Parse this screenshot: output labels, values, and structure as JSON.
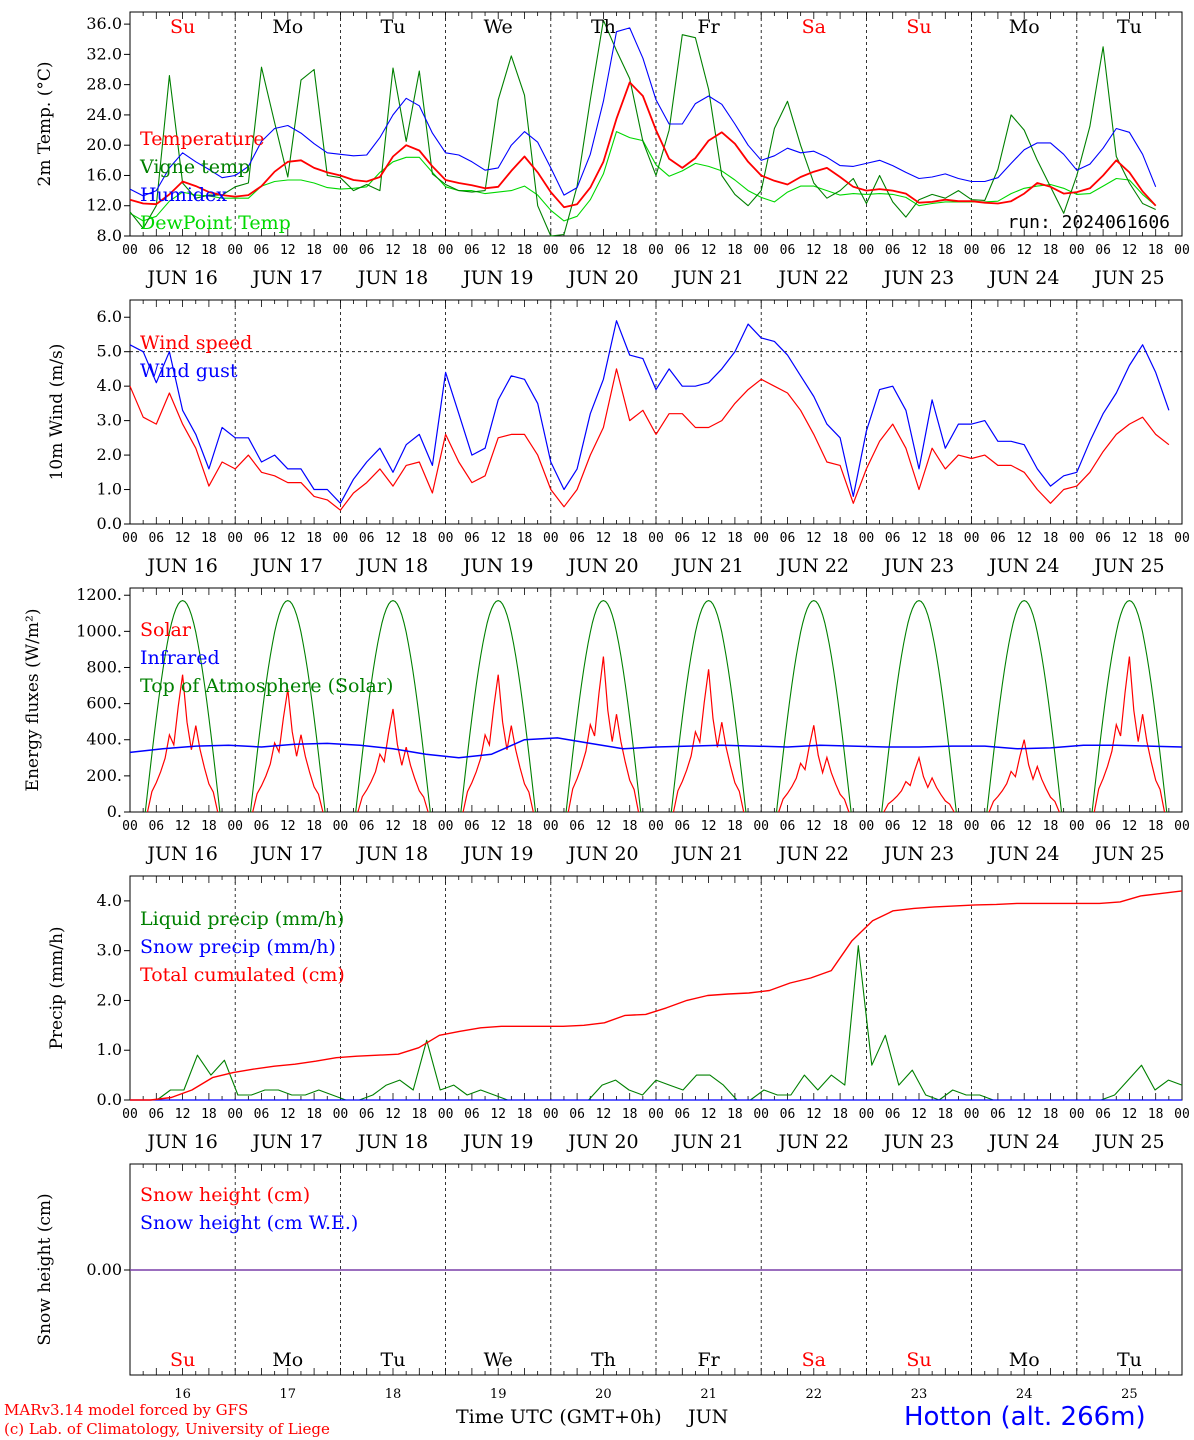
{
  "footer": {
    "model_line": "MARv3.14 model forced by GFS",
    "copyright_line": "(c) Lab. of Climatology, University of Liege",
    "xlabel": "Time UTC (GMT+0h)",
    "month": "JUN",
    "station": "Hotton (alt. 266m)"
  },
  "colors": {
    "red": "#ff0000",
    "blue": "#0000ff",
    "green": "#008000",
    "light_green": "#00d800",
    "purple": "#7a3fa8"
  },
  "days": {
    "weekday_labels": [
      "Su",
      "Mo",
      "Tu",
      "We",
      "Th",
      "Fr",
      "Sa",
      "Su",
      "Mo",
      "Tu"
    ],
    "weekday_colors": [
      "#ff0000",
      "#000000",
      "#000000",
      "#000000",
      "#000000",
      "#000000",
      "#ff0000",
      "#ff0000",
      "#000000",
      "#000000"
    ],
    "date_labels": [
      "JUN 16",
      "JUN 17",
      "JUN 18",
      "JUN 19",
      "JUN 20",
      "JUN 21",
      "JUN 22",
      "JUN 23",
      "JUN 24",
      "JUN 25"
    ],
    "day_numbers": [
      "16",
      "17",
      "18",
      "19",
      "20",
      "21",
      "22",
      "23",
      "24",
      "25"
    ],
    "hour_labels": [
      "00",
      "06",
      "12",
      "18"
    ],
    "final_hour_label": "00"
  },
  "chart_data": [
    {
      "type": "line",
      "ylabel": "2m Temp. (°C)",
      "ylim": [
        8,
        37.6
      ],
      "yticks": [
        "8.0",
        "12.0",
        "16.0",
        "20.0",
        "24.0",
        "28.0",
        "32.0",
        "36.0"
      ],
      "annotation": "run: 2024061606",
      "x": "hours since JUN 16 00 UTC (3-hourly)",
      "series": [
        {
          "name": "Temperature",
          "color": "#ff0000",
          "values": [
            12.8,
            12.3,
            12.2,
            13.5,
            15.2,
            14.6,
            13.8,
            13.4,
            13.2,
            13.4,
            14.6,
            16.5,
            17.8,
            18.0,
            17.0,
            16.4,
            16.0,
            15.4,
            15.2,
            15.8,
            18.5,
            20.0,
            19.3,
            17.2,
            15.4,
            15.0,
            14.7,
            14.3,
            14.5,
            16.6,
            18.5,
            16.4,
            13.8,
            11.8,
            12.2,
            14.4,
            17.8,
            23.5,
            28.3,
            26.5,
            22.0,
            18.2,
            17.0,
            18.3,
            20.6,
            21.7,
            20.2,
            17.8,
            16.0,
            15.3,
            14.8,
            15.8,
            16.5,
            17.0,
            15.8,
            14.5,
            14.0,
            14.2,
            14.0,
            13.6,
            12.4,
            12.5,
            12.8,
            12.6,
            12.6,
            12.4,
            12.3,
            12.6,
            13.6,
            15.0,
            14.5,
            13.6,
            13.8,
            14.3,
            16.0,
            18.0,
            16.4,
            13.9,
            12.0
          ]
        },
        {
          "name": "Vigne temp",
          "color": "#008000",
          "values": [
            11.2,
            9.0,
            12.0,
            29.2,
            15.0,
            13.0,
            13.4,
            13.4,
            14.5,
            15.0,
            30.3,
            23.0,
            15.8,
            28.6,
            30.0,
            16.0,
            15.7,
            14.0,
            14.8,
            14.0,
            30.2,
            20.5,
            29.8,
            16.2,
            14.8,
            14.0,
            13.8,
            14.0,
            26.0,
            31.8,
            26.6,
            12.0,
            8.0,
            8.2,
            14.6,
            26.0,
            36.5,
            32.5,
            28.8,
            20.5,
            16.0,
            22.0,
            34.6,
            34.2,
            27.4,
            16.0,
            13.5,
            12.0,
            14.0,
            22.2,
            25.8,
            20.0,
            15.0,
            13.0,
            14.0,
            15.6,
            12.3,
            16.0,
            12.5,
            10.5,
            12.8,
            13.5,
            13.0,
            14.0,
            12.8,
            12.7,
            16.8,
            24.0,
            22.0,
            18.0,
            14.5,
            11.0,
            16.0,
            22.5,
            33.0,
            18.5,
            15.0,
            12.3,
            11.5
          ]
        },
        {
          "name": "Humidex",
          "color": "#0000ff",
          "values": [
            14.2,
            13.3,
            14.0,
            17.0,
            19.0,
            17.8,
            16.8,
            15.7,
            16.0,
            17.2,
            20.5,
            22.2,
            22.6,
            21.6,
            20.2,
            19.0,
            18.8,
            18.6,
            18.7,
            21.0,
            24.0,
            26.2,
            25.2,
            21.6,
            19.0,
            18.7,
            17.8,
            16.7,
            17.0,
            20.0,
            21.8,
            20.4,
            17.0,
            13.4,
            14.4,
            18.8,
            25.8,
            35.0,
            35.5,
            31.5,
            26.0,
            22.8,
            22.8,
            25.5,
            26.5,
            25.4,
            22.8,
            20.0,
            18.0,
            18.6,
            19.6,
            19.0,
            19.2,
            18.4,
            17.3,
            17.2,
            17.6,
            18.0,
            17.3,
            16.4,
            15.6,
            15.8,
            16.2,
            15.6,
            15.2,
            15.2,
            15.7,
            17.6,
            19.4,
            20.3,
            20.3,
            18.8,
            16.7,
            17.5,
            19.6,
            22.2,
            21.7,
            18.8,
            14.5
          ]
        },
        {
          "name": "DewPoint Temp",
          "color": "#00d800",
          "values": [
            11.0,
            10.0,
            10.6,
            12.6,
            13.8,
            13.4,
            13.3,
            13.0,
            13.0,
            13.0,
            14.6,
            15.2,
            15.4,
            15.4,
            15.0,
            14.4,
            14.2,
            14.3,
            14.5,
            16.4,
            17.8,
            18.4,
            18.4,
            16.4,
            14.5,
            14.0,
            14.0,
            13.6,
            13.8,
            14.0,
            14.6,
            13.4,
            11.4,
            10.0,
            10.6,
            12.8,
            16.2,
            21.8,
            21.0,
            20.6,
            17.4,
            15.9,
            16.6,
            17.6,
            17.2,
            16.6,
            15.4,
            14.0,
            13.1,
            12.5,
            13.8,
            14.6,
            14.6,
            14.0,
            13.4,
            13.6,
            13.5,
            13.6,
            13.5,
            13.1,
            12.0,
            12.3,
            12.5,
            12.5,
            12.5,
            12.5,
            12.6,
            13.6,
            14.3,
            14.6,
            14.8,
            14.3,
            13.5,
            13.6,
            14.6,
            15.6,
            15.4,
            13.5,
            12.0
          ]
        }
      ]
    },
    {
      "type": "line",
      "ylabel": "10m Wind (m/s)",
      "ylim": [
        0,
        6.5
      ],
      "yticks": [
        "0.0",
        "1.0",
        "2.0",
        "3.0",
        "4.0",
        "5.0",
        "6.0"
      ],
      "reference_line": 5.0,
      "series": [
        {
          "name": "Wind speed",
          "color": "#ff0000",
          "values": [
            4.0,
            3.1,
            2.9,
            3.8,
            2.9,
            2.2,
            1.1,
            1.8,
            1.6,
            2.0,
            1.5,
            1.4,
            1.2,
            1.2,
            0.8,
            0.7,
            0.4,
            0.9,
            1.2,
            1.6,
            1.1,
            1.7,
            1.8,
            0.9,
            2.6,
            1.8,
            1.2,
            1.4,
            2.5,
            2.6,
            2.6,
            2.0,
            1.0,
            0.5,
            1.0,
            2.0,
            2.8,
            4.5,
            3.0,
            3.3,
            2.6,
            3.2,
            3.2,
            2.8,
            2.8,
            3.0,
            3.5,
            3.9,
            4.2,
            4.0,
            3.8,
            3.3,
            2.6,
            1.8,
            1.7,
            0.6,
            1.6,
            2.4,
            2.9,
            2.2,
            1.0,
            2.2,
            1.6,
            2.0,
            1.9,
            2.0,
            1.7,
            1.7,
            1.5,
            1.0,
            0.6,
            1.0,
            1.1,
            1.5,
            2.1,
            2.6,
            2.9,
            3.1,
            2.6,
            2.3
          ]
        },
        {
          "name": "Wind gust",
          "color": "#0000ff",
          "values": [
            5.2,
            5.0,
            4.1,
            5.0,
            3.3,
            2.6,
            1.6,
            2.8,
            2.5,
            2.5,
            1.8,
            2.0,
            1.6,
            1.6,
            1.0,
            1.0,
            0.6,
            1.3,
            1.8,
            2.2,
            1.5,
            2.3,
            2.6,
            1.7,
            4.4,
            3.2,
            2.0,
            2.2,
            3.6,
            4.3,
            4.2,
            3.5,
            1.8,
            1.0,
            1.6,
            3.2,
            4.2,
            5.9,
            4.9,
            4.8,
            3.9,
            4.5,
            4.0,
            4.0,
            4.1,
            4.5,
            5.0,
            5.8,
            5.4,
            5.3,
            4.9,
            4.3,
            3.7,
            2.9,
            2.5,
            0.8,
            2.7,
            3.9,
            4.0,
            3.3,
            1.6,
            3.6,
            2.2,
            2.9,
            2.9,
            3.0,
            2.4,
            2.4,
            2.3,
            1.6,
            1.1,
            1.4,
            1.5,
            2.4,
            3.2,
            3.8,
            4.6,
            5.2,
            4.4,
            3.3
          ]
        }
      ]
    },
    {
      "type": "line",
      "ylabel": "Energy fluxes (W/m²)",
      "ylim": [
        0,
        1240
      ],
      "yticks": [
        "0.",
        "200.",
        "400.",
        "600.",
        "800.",
        "1000.",
        "1200."
      ],
      "series": [
        {
          "name": "Solar",
          "color": "#ff0000",
          "peak_values_by_day": [
            760,
            680,
            570,
            760,
            860,
            790,
            480,
            300,
            400,
            860
          ]
        },
        {
          "name": "Infrared",
          "color": "#0000ff",
          "values": [
            330,
            350,
            365,
            370,
            360,
            375,
            380,
            370,
            350,
            320,
            300,
            320,
            400,
            410,
            380,
            350,
            360,
            365,
            370,
            365,
            360,
            370,
            365,
            360,
            360,
            365,
            365,
            350,
            355,
            370,
            370,
            365,
            360
          ]
        },
        {
          "name": "Top of Atmosphere (Solar)",
          "color": "#008000",
          "peak_value": 1170
        }
      ]
    },
    {
      "type": "line",
      "ylabel": "Precip (mm/h)",
      "ylim": [
        0,
        4.5
      ],
      "yticks": [
        "0.0",
        "1.0",
        "2.0",
        "3.0",
        "4.0"
      ],
      "series": [
        {
          "name": "Liquid precip (mm/h)",
          "color": "#008000",
          "values": [
            0,
            0,
            0,
            0.2,
            0.2,
            0.9,
            0.5,
            0.8,
            0.1,
            0.1,
            0.2,
            0.2,
            0.1,
            0.1,
            0.2,
            0.1,
            0,
            0,
            0.1,
            0.3,
            0.4,
            0.2,
            1.2,
            0.2,
            0.3,
            0.1,
            0.2,
            0.1,
            0,
            0,
            0,
            0,
            0,
            0,
            0,
            0.3,
            0.4,
            0.2,
            0.1,
            0.4,
            0.3,
            0.2,
            0.5,
            0.5,
            0.3,
            0,
            0,
            0.2,
            0.1,
            0.1,
            0.5,
            0.2,
            0.5,
            0.3,
            3.1,
            0.7,
            1.3,
            0.3,
            0.6,
            0.1,
            0,
            0.2,
            0.1,
            0.1,
            0,
            0,
            0,
            0,
            0,
            0,
            0,
            0,
            0,
            0.1,
            0.4,
            0.7,
            0.2,
            0.4,
            0.3
          ]
        },
        {
          "name": "Snow precip (mm/h)",
          "color": "#0000ff",
          "values": [
            0,
            0
          ]
        },
        {
          "name": "Total cumulated (cm)",
          "color": "#ff0000",
          "values": [
            0,
            0,
            0.05,
            0.2,
            0.45,
            0.55,
            0.62,
            0.68,
            0.72,
            0.78,
            0.85,
            0.88,
            0.9,
            0.92,
            1.05,
            1.3,
            1.38,
            1.45,
            1.48,
            1.48,
            1.48,
            1.48,
            1.5,
            1.55,
            1.7,
            1.72,
            1.85,
            2.0,
            2.1,
            2.13,
            2.15,
            2.2,
            2.35,
            2.45,
            2.6,
            3.2,
            3.6,
            3.8,
            3.85,
            3.88,
            3.9,
            3.92,
            3.93,
            3.95,
            3.95,
            3.95,
            3.95,
            3.95,
            3.98,
            4.1,
            4.15,
            4.2
          ]
        }
      ]
    },
    {
      "type": "line",
      "ylabel": "Snow height (cm)",
      "yticks": [
        "0.00"
      ],
      "series": [
        {
          "name": "Snow height (cm)",
          "color": "#ff0000",
          "values": [
            0,
            0
          ]
        },
        {
          "name": "Snow height (cm W.E.)",
          "color": "#0000ff",
          "values": [
            0,
            0
          ]
        }
      ]
    }
  ]
}
